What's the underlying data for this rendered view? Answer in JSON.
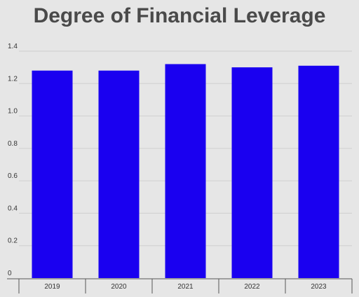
{
  "chart_data": {
    "type": "bar",
    "title": "Degree of Financial Leverage",
    "categories": [
      "2019",
      "2020",
      "2021",
      "2022",
      "2023"
    ],
    "values": [
      1.28,
      1.28,
      1.32,
      1.3,
      1.31
    ],
    "ylim": [
      0,
      1.4
    ],
    "yticks": [
      "0",
      "0.2",
      "0.4",
      "0.6",
      "0.8",
      "1.0",
      "1.2",
      "1.4"
    ],
    "xlabel": "",
    "ylabel": "",
    "grid": true,
    "colors": {
      "bar": "#1a00f0",
      "background": "#e6e6e6",
      "grid": "#cfcfcf",
      "axis": "#555555"
    }
  }
}
